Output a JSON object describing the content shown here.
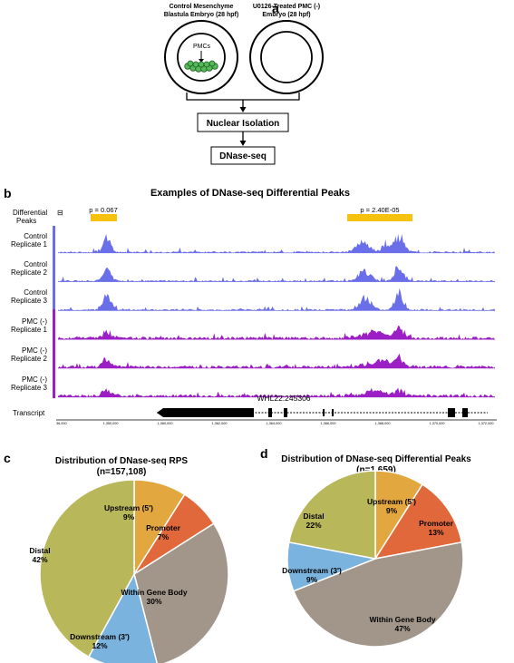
{
  "panel_a": {
    "letter": "a",
    "embryo_left_line1": "Control Mesenchyme",
    "embryo_left_line2": "Blastula Embryo (28 hpf)",
    "embryo_right_line1": "U0126-Treated PMC (-)",
    "embryo_right_line2": "Embryo (28 hpf)",
    "pmc_label": "PMCs",
    "step1": "Nuclear Isolation",
    "step2": "DNase-seq"
  },
  "panel_b": {
    "letter": "b",
    "title": "Examples of DNase-seq Differential Peaks",
    "diff_label_line1": "Differential",
    "diff_label_line2": "Peaks",
    "diff_label_mark": "⊟",
    "pvalue_left": "p = 0.067",
    "pvalue_right": "p = 2.40E-05",
    "tracks": [
      {
        "line1": "Control",
        "line2": "Replicate 1",
        "color": "#6a6ee8"
      },
      {
        "line1": "Control",
        "line2": "Replicate 2",
        "color": "#6a6ee8"
      },
      {
        "line1": "Control",
        "line2": "Replicate 3",
        "color": "#6a6ee8"
      },
      {
        "line1": "PMC (-)",
        "line2": "Replicate 1",
        "color": "#9b1fc4"
      },
      {
        "line1": "PMC (-)",
        "line2": "Replicate 2",
        "color": "#9b1fc4"
      },
      {
        "line1": "PMC (-)",
        "line2": "Replicate 3",
        "color": "#9b1fc4"
      }
    ],
    "gene_label": "WHL22.245306",
    "transcript_label": "Transcript",
    "axis_ticks": [
      "36,000",
      "1,350,000",
      "1,360,000",
      "1,362,000",
      "1,364,000",
      "1,366,000",
      "1,368,000",
      "1,370,000",
      "1,372,000"
    ]
  },
  "panel_c": {
    "letter": "c",
    "title": "Distribution of DNase-seq RPS",
    "subtitle": "(n=157,108)"
  },
  "panel_d": {
    "letter": "d",
    "title": "Distribution of DNase-seq Differential Peaks",
    "subtitle": "(n=1,659)"
  },
  "chart_data": [
    {
      "type": "pie",
      "title": "Distribution of DNase-seq RPS",
      "subtitle": "(n=157,108)",
      "slices": [
        {
          "label": "Upstream (5')",
          "value": 9,
          "pct": "9%",
          "color": "#e3a73f"
        },
        {
          "label": "Promoter",
          "value": 7,
          "pct": "7%",
          "color": "#e0683a"
        },
        {
          "label": "Within Gene Body",
          "value": 30,
          "pct": "30%",
          "color": "#a2968a"
        },
        {
          "label": "Downstream (3')",
          "value": 12,
          "pct": "12%",
          "color": "#7ab3de"
        },
        {
          "label": "Distal",
          "value": 42,
          "pct": "42%",
          "color": "#b8b75a"
        }
      ]
    },
    {
      "type": "pie",
      "title": "Distribution of DNase-seq Differential Peaks",
      "subtitle": "(n=1,659)",
      "slices": [
        {
          "label": "Upstream (5')",
          "value": 9,
          "pct": "9%",
          "color": "#e3a73f"
        },
        {
          "label": "Promoter",
          "value": 13,
          "pct": "13%",
          "color": "#e0683a"
        },
        {
          "label": "Within Gene Body",
          "value": 47,
          "pct": "47%",
          "color": "#a2968a"
        },
        {
          "label": "Downstream (3')",
          "value": 9,
          "pct": "9%",
          "color": "#7ab3de"
        },
        {
          "label": "Distal",
          "value": 22,
          "pct": "22%",
          "color": "#b8b75a"
        }
      ]
    }
  ]
}
